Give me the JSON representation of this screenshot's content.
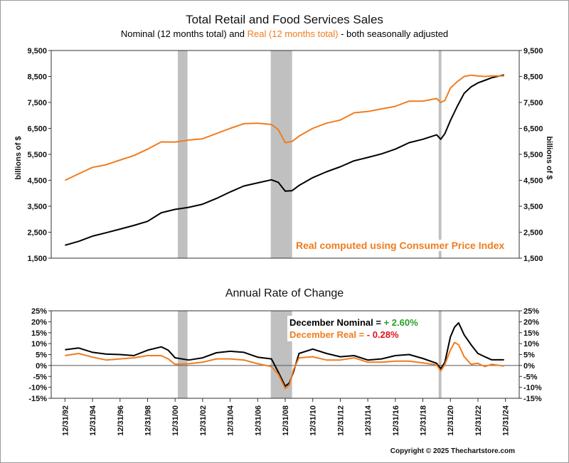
{
  "title": "Total Retail and Food Services Sales",
  "subtitle": {
    "part1": "Nominal (12 months total) and ",
    "part2": "Real (12 months total)",
    "part3": " - both seasonally adjusted"
  },
  "lower_title": "Annual Rate of Change",
  "note": "Real computed using Consumer Price Index",
  "change_box": {
    "nominal_label": "December Nominal = ",
    "nominal_value": "+ 2.60%",
    "real_label": "December Real = ",
    "real_value": "- 0.28%"
  },
  "copyright": "Copyright © 2025 Thechartstore.com",
  "colors": {
    "nominal": "#000000",
    "real": "#f07c1e",
    "recession": "#c0c0c0",
    "positive": "#23a023",
    "negative": "#e0141e"
  },
  "chart_data": [
    {
      "type": "line",
      "title": "Total Retail and Food Services Sales",
      "ylabel": "billions of $",
      "ylim": [
        1500,
        9500
      ],
      "yticks": [
        "1,500",
        "2,500",
        "3,500",
        "4,500",
        "5,500",
        "6,500",
        "7,500",
        "8,500",
        "9,500"
      ],
      "ytick_values": [
        1500,
        2500,
        3500,
        4500,
        5500,
        6500,
        7500,
        8500,
        9500
      ],
      "x_range": [
        1992,
        2026
      ],
      "recessions": [
        [
          2001.2,
          2001.9
        ],
        [
          2007.95,
          2009.5
        ],
        [
          2020.15,
          2020.35
        ]
      ],
      "grid": false,
      "series": [
        {
          "name": "Nominal",
          "color": "#000000",
          "x": [
            1993.0,
            1994.0,
            1995.0,
            1996.0,
            1997.0,
            1998.0,
            1999.0,
            2000.0,
            2001.0,
            2002.0,
            2003.0,
            2004.0,
            2005.0,
            2006.0,
            2007.0,
            2008.0,
            2008.5,
            2009.0,
            2009.5,
            2010.0,
            2011.0,
            2012.0,
            2013.0,
            2014.0,
            2015.0,
            2016.0,
            2017.0,
            2018.0,
            2019.0,
            2020.0,
            2020.3,
            2020.6,
            2021.0,
            2021.5,
            2022.0,
            2022.5,
            2023.0,
            2023.5,
            2024.0,
            2024.9
          ],
          "values": [
            2000,
            2150,
            2350,
            2480,
            2620,
            2760,
            2920,
            3250,
            3380,
            3460,
            3580,
            3800,
            4050,
            4280,
            4400,
            4520,
            4420,
            4080,
            4100,
            4300,
            4600,
            4830,
            5020,
            5250,
            5380,
            5520,
            5700,
            5950,
            6080,
            6250,
            6080,
            6300,
            6800,
            7350,
            7850,
            8100,
            8250,
            8350,
            8450,
            8560
          ]
        },
        {
          "name": "Real",
          "color": "#f07c1e",
          "x": [
            1993.0,
            1994.0,
            1995.0,
            1996.0,
            1997.0,
            1998.0,
            1999.0,
            2000.0,
            2001.0,
            2002.0,
            2003.0,
            2004.0,
            2005.0,
            2006.0,
            2007.0,
            2008.0,
            2008.5,
            2009.0,
            2009.5,
            2010.0,
            2011.0,
            2012.0,
            2013.0,
            2014.0,
            2015.0,
            2016.0,
            2017.0,
            2018.0,
            2019.0,
            2020.0,
            2020.3,
            2020.6,
            2021.0,
            2021.5,
            2022.0,
            2022.5,
            2023.0,
            2023.5,
            2024.0,
            2024.9
          ],
          "values": [
            4500,
            4750,
            5000,
            5100,
            5280,
            5450,
            5700,
            5980,
            5970,
            6050,
            6100,
            6300,
            6500,
            6680,
            6700,
            6650,
            6450,
            5950,
            6000,
            6200,
            6500,
            6700,
            6820,
            7100,
            7150,
            7250,
            7350,
            7550,
            7550,
            7650,
            7500,
            7580,
            8050,
            8300,
            8500,
            8550,
            8520,
            8500,
            8520,
            8520
          ]
        }
      ]
    },
    {
      "type": "line",
      "title": "Annual Rate of Change",
      "ylim": [
        -15,
        25
      ],
      "yticks": [
        "-15%",
        "-10%",
        "-5%",
        "0%",
        "5%",
        "10%",
        "15%",
        "20%",
        "25%"
      ],
      "ytick_values": [
        -15,
        -10,
        -5,
        0,
        5,
        10,
        15,
        20,
        25
      ],
      "xticks": [
        "12/31/92",
        "12/31/94",
        "12/31/96",
        "12/31/98",
        "12/31/00",
        "12/31/02",
        "12/31/04",
        "12/31/06",
        "12/31/08",
        "12/31/10",
        "12/31/12",
        "12/31/14",
        "12/31/16",
        "12/31/18",
        "12/31/20",
        "12/31/22",
        "12/31/24"
      ],
      "xtick_values": [
        1993,
        1995,
        1997,
        1999,
        2001,
        2003,
        2005,
        2007,
        2009,
        2011,
        2013,
        2015,
        2017,
        2019,
        2021,
        2023,
        2025
      ],
      "x_range": [
        1992,
        2026
      ],
      "recessions": [
        [
          2001.2,
          2001.9
        ],
        [
          2007.95,
          2009.5
        ],
        [
          2020.15,
          2020.35
        ]
      ],
      "grid": false,
      "series": [
        {
          "name": "December Nominal",
          "color": "#000000",
          "x": [
            1993.0,
            1994.0,
            1995.0,
            1996.0,
            1997.0,
            1998.0,
            1999.0,
            2000.0,
            2000.5,
            2001.0,
            2002.0,
            2003.0,
            2004.0,
            2005.0,
            2006.0,
            2007.0,
            2008.0,
            2008.5,
            2009.0,
            2009.3,
            2009.6,
            2010.0,
            2011.0,
            2012.0,
            2013.0,
            2014.0,
            2015.0,
            2016.0,
            2017.0,
            2018.0,
            2019.0,
            2020.0,
            2020.3,
            2020.6,
            2021.0,
            2021.3,
            2021.6,
            2022.0,
            2022.5,
            2023.0,
            2023.5,
            2024.0,
            2024.9
          ],
          "values": [
            7.2,
            8.0,
            6.0,
            5.2,
            5.0,
            4.5,
            7.0,
            8.5,
            7.0,
            3.5,
            2.5,
            3.5,
            5.8,
            6.5,
            6.0,
            3.8,
            3.0,
            -3.0,
            -9.5,
            -8.0,
            -3.0,
            5.5,
            7.5,
            5.5,
            4.0,
            4.5,
            2.5,
            3.0,
            4.5,
            5.0,
            3.2,
            1.0,
            -1.5,
            1.5,
            13.0,
            17.5,
            19.5,
            14.0,
            9.5,
            5.5,
            4.0,
            2.6,
            2.6
          ]
        },
        {
          "name": "December Real",
          "color": "#f07c1e",
          "x": [
            1993.0,
            1994.0,
            1995.0,
            1996.0,
            1997.0,
            1998.0,
            1999.0,
            2000.0,
            2000.5,
            2001.0,
            2002.0,
            2003.0,
            2004.0,
            2005.0,
            2006.0,
            2007.0,
            2008.0,
            2008.5,
            2009.0,
            2009.3,
            2009.6,
            2010.0,
            2011.0,
            2012.0,
            2013.0,
            2014.0,
            2015.0,
            2016.0,
            2017.0,
            2018.0,
            2019.0,
            2020.0,
            2020.3,
            2020.6,
            2021.0,
            2021.3,
            2021.6,
            2022.0,
            2022.5,
            2023.0,
            2023.5,
            2024.0,
            2024.9
          ],
          "values": [
            4.5,
            5.5,
            3.8,
            2.5,
            3.0,
            3.5,
            4.5,
            4.5,
            3.0,
            0.5,
            0.8,
            1.5,
            3.0,
            3.0,
            2.5,
            0.8,
            -0.5,
            -4.0,
            -10.5,
            -9.0,
            -2.0,
            3.5,
            4.0,
            2.5,
            2.5,
            3.5,
            1.5,
            1.5,
            2.0,
            2.0,
            1.2,
            0.3,
            -2.5,
            0.5,
            7.0,
            10.5,
            9.5,
            4.0,
            0.5,
            1.0,
            -0.5,
            0.5,
            -0.28
          ]
        }
      ]
    }
  ]
}
